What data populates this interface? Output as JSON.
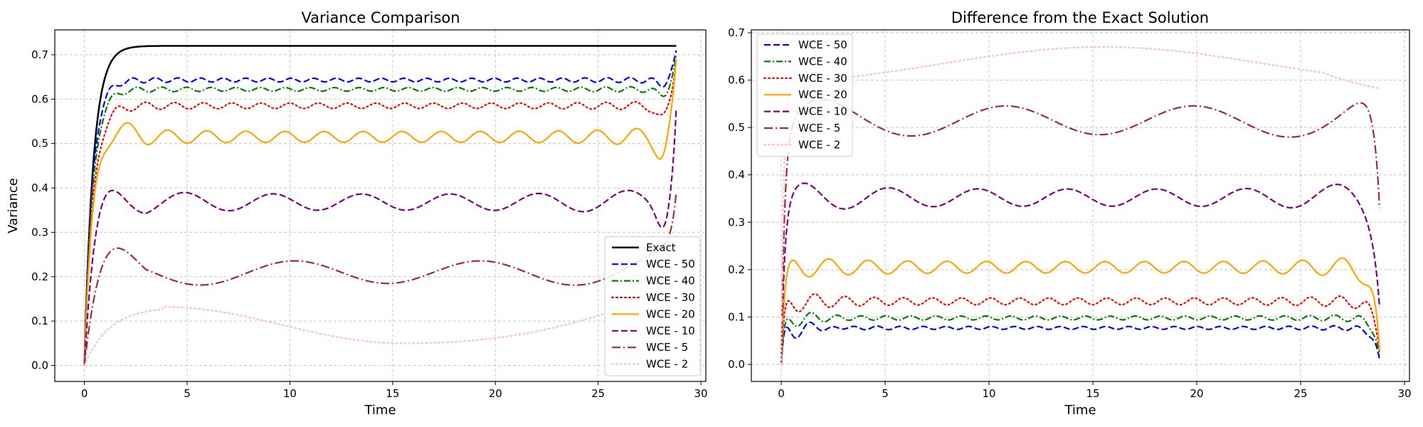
{
  "chart_data": [
    {
      "type": "line",
      "title": "Variance Comparison",
      "xlabel": "Time",
      "ylabel": "Variance",
      "xlim": [
        -1.44,
        30.24
      ],
      "ylim": [
        -0.036,
        0.756
      ],
      "xticks": [
        0,
        5,
        10,
        15,
        20,
        25,
        30
      ],
      "yticks": [
        0.0,
        0.1,
        0.2,
        0.3,
        0.4,
        0.5,
        0.6,
        0.7
      ],
      "xtick_labels": [
        "0",
        "5",
        "10",
        "15",
        "20",
        "25",
        "30"
      ],
      "ytick_labels": [
        "0.0",
        "0.1",
        "0.2",
        "0.3",
        "0.4",
        "0.5",
        "0.6",
        "0.7"
      ],
      "grid": true,
      "legend_position": "lower-right",
      "x_end": 28.8,
      "series": [
        {
          "name": "Exact",
          "label": "Exact",
          "color": "#000000",
          "dash": "solid",
          "model": {
            "kind": "exact",
            "asymptote": 0.72,
            "rate": 2.3
          }
        },
        {
          "name": "WCE - 50",
          "label": "WCE - 50",
          "color": "#0000ff",
          "dash": "dashed",
          "model": {
            "kind": "wce",
            "steady": 0.643,
            "rate": 2.6,
            "amp": 0.004,
            "period": 1.1,
            "end_value": 0.71,
            "end_dip": 0.015,
            "offset": 0.003
          }
        },
        {
          "name": "WCE - 40",
          "label": "WCE - 40",
          "color": "#008000",
          "dash": "dashdot",
          "model": {
            "kind": "wce",
            "steady": 0.622,
            "rate": 2.5,
            "amp": 0.004,
            "period": 1.2,
            "end_value": 0.7,
            "end_dip": 0.02,
            "offset": 0.0
          }
        },
        {
          "name": "WCE - 30",
          "label": "WCE - 30",
          "color": "#ff0000",
          "dash": "dotted",
          "model": {
            "kind": "wce",
            "steady": 0.585,
            "rate": 2.4,
            "amp": 0.006,
            "period": 1.4,
            "end_value": 0.69,
            "end_dip": 0.04,
            "offset": 0.0
          }
        },
        {
          "name": "WCE - 20",
          "label": "WCE - 20",
          "color": "#ffa500",
          "dash": "solid",
          "model": {
            "kind": "wce",
            "steady": 0.515,
            "rate": 2.3,
            "amp": 0.012,
            "period": 1.9,
            "end_value": 0.69,
            "end_dip": 0.05,
            "offset": 0.0,
            "overshoot": 0.06
          }
        },
        {
          "name": "WCE - 10",
          "label": "WCE - 10",
          "color": "#800080",
          "dash": "dashed",
          "model": {
            "kind": "wce",
            "steady": 0.368,
            "rate": 1.8,
            "amp": 0.018,
            "period": 4.3,
            "end_value": 0.58,
            "end_dip": 0.05,
            "offset": 0.0,
            "overshoot": 0.09
          }
        },
        {
          "name": "WCE - 5",
          "label": "WCE - 5",
          "color": "#a52a2a",
          "dash": "dashdotlong",
          "model": {
            "kind": "wce",
            "steady": 0.21,
            "rate": 1.2,
            "amp": 0.025,
            "period": 9.0,
            "end_value": 0.39,
            "end_dip": 0.0,
            "offset": 0.0,
            "overshoot": 0.11
          }
        },
        {
          "name": "WCE - 2",
          "label": "WCE - 2",
          "color": "#ffc0cb",
          "dash": "dotted",
          "model": {
            "kind": "slow",
            "peak": 0.132,
            "peak_t": 3.8,
            "trough": 0.05,
            "trough_t": 15.5,
            "end_value": 0.18
          }
        }
      ]
    },
    {
      "type": "line",
      "title": "Difference from the Exact Solution",
      "xlabel": "Time",
      "ylabel": "",
      "xlim": [
        -1.44,
        30.24
      ],
      "ylim": [
        -0.036,
        0.706
      ],
      "xticks": [
        0,
        5,
        10,
        15,
        20,
        25,
        30
      ],
      "yticks": [
        0.0,
        0.1,
        0.2,
        0.3,
        0.4,
        0.5,
        0.6,
        0.7
      ],
      "xtick_labels": [
        "0",
        "5",
        "10",
        "15",
        "20",
        "25",
        "30"
      ],
      "ytick_labels": [
        "0.0",
        "0.1",
        "0.2",
        "0.3",
        "0.4",
        "0.5",
        "0.6",
        "0.7"
      ],
      "grid": true,
      "legend_position": "upper-left",
      "x_end": 28.8,
      "series": [
        {
          "name": "WCE - 50",
          "label": "WCE - 50",
          "color": "#0000ff",
          "dash": "dashed",
          "model": {
            "kind": "diff",
            "steady": 0.077,
            "amp": 0.003,
            "period": 1.1,
            "early_peak": 0.11,
            "end_value": 0.01
          }
        },
        {
          "name": "WCE - 40",
          "label": "WCE - 40",
          "color": "#008000",
          "dash": "dashdot",
          "model": {
            "kind": "diff",
            "steady": 0.098,
            "amp": 0.004,
            "period": 1.2,
            "early_peak": 0.12,
            "end_value": 0.02
          }
        },
        {
          "name": "WCE - 30",
          "label": "WCE - 30",
          "color": "#ff0000",
          "dash": "dotted",
          "model": {
            "kind": "diff",
            "steady": 0.133,
            "amp": 0.007,
            "period": 1.4,
            "early_peak": 0.16,
            "end_value": 0.03
          }
        },
        {
          "name": "WCE - 20",
          "label": "WCE - 20",
          "color": "#ffa500",
          "dash": "solid",
          "model": {
            "kind": "diff",
            "steady": 0.205,
            "amp": 0.012,
            "period": 1.9,
            "early_peak": 0.2,
            "end_value": 0.03
          }
        },
        {
          "name": "WCE - 10",
          "label": "WCE - 10",
          "color": "#800080",
          "dash": "dashed",
          "model": {
            "kind": "diff",
            "steady": 0.352,
            "amp": 0.018,
            "period": 4.3,
            "early_peak": 0.31,
            "end_value": 0.12
          }
        },
        {
          "name": "WCE - 5",
          "label": "WCE - 5",
          "color": "#a52a2a",
          "dash": "dashdotlong",
          "model": {
            "kind": "diff",
            "steady": 0.515,
            "amp": 0.03,
            "period": 9.0,
            "early_peak": 0.45,
            "end_value": 0.33
          }
        },
        {
          "name": "WCE - 2",
          "label": "WCE - 2",
          "color": "#ffc0cb",
          "dash": "dotted",
          "model": {
            "kind": "diff2",
            "start_level": 0.58,
            "peak": 0.67,
            "peak_t": 15.5,
            "end_value": 0.57
          }
        }
      ]
    }
  ]
}
